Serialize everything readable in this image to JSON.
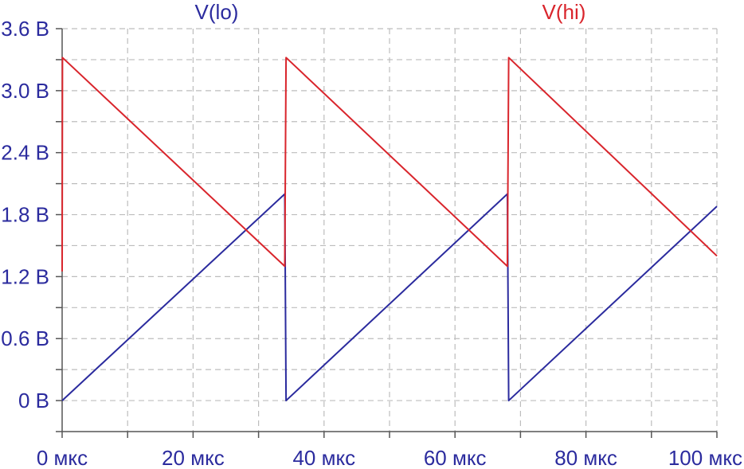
{
  "colors": {
    "axis_text": "#2b2b9e",
    "y_text": "#2b2b9e",
    "grid": "#bdbdbd",
    "axis_line": "#555555",
    "lo": "#2b2b9e",
    "hi": "#d9252c"
  },
  "chart_data": {
    "type": "line",
    "title": "",
    "xlabel": "",
    "ylabel": "",
    "xlim": [
      0,
      100
    ],
    "ylim": [
      -0.3,
      3.6
    ],
    "grid": true,
    "legend_placement": "top",
    "x_ticks": [
      {
        "value": 0,
        "label": "0 мкс"
      },
      {
        "value": 20,
        "label": "20 мкс"
      },
      {
        "value": 40,
        "label": "40 мкс"
      },
      {
        "value": 60,
        "label": "60 мкс"
      },
      {
        "value": 80,
        "label": "80 мкс"
      },
      {
        "value": 100,
        "label": "100 мкс"
      }
    ],
    "x_minor_ticks": [
      10,
      30,
      50,
      70,
      90
    ],
    "y_ticks": [
      {
        "value": 3.6,
        "label": "3.6 В"
      },
      {
        "value": 3.0,
        "label": "3.0 В"
      },
      {
        "value": 2.4,
        "label": "2.4 В"
      },
      {
        "value": 1.8,
        "label": "1.8 В"
      },
      {
        "value": 1.2,
        "label": "1.2 В"
      },
      {
        "value": 0.6,
        "label": "0.6 В"
      },
      {
        "value": 0,
        "label": "0 В"
      }
    ],
    "y_minor_ticks": [
      3.3,
      2.7,
      2.1,
      1.5,
      0.9,
      0.3,
      -0.3
    ],
    "series": [
      {
        "name": "V(lo)",
        "color": "#2b2b9e",
        "x": [
          0,
          34,
          34.2,
          68,
          68.2,
          100
        ],
        "y": [
          0,
          2.0,
          0,
          2.0,
          0,
          1.88
        ]
      },
      {
        "name": "V(hi)",
        "color": "#d9252c",
        "x": [
          0,
          0.05,
          34,
          34.2,
          68,
          68.2,
          100
        ],
        "y": [
          1.25,
          3.32,
          1.3,
          3.32,
          1.3,
          3.32,
          1.4
        ]
      }
    ]
  }
}
